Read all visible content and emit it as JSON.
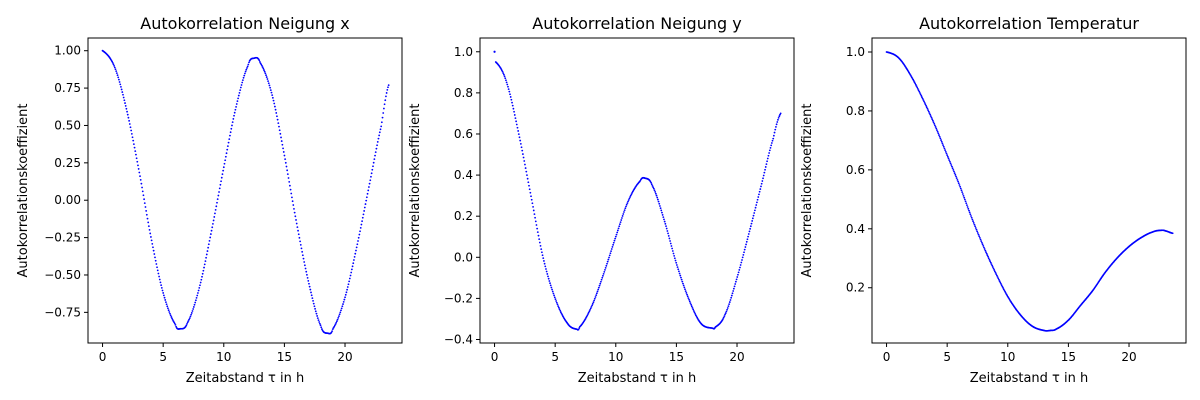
{
  "chart_data": [
    {
      "type": "scatter",
      "title": "Autokorrelation Neigung x",
      "xlabel": "Zeitabstand τ in h",
      "ylabel": "Autokorrelationskoeffizient",
      "xlim": [
        -1.2,
        24.7
      ],
      "ylim": [
        -0.955,
        1.085
      ],
      "xticks": [
        0,
        5,
        10,
        15,
        20
      ],
      "xtick_labels": [
        "0",
        "5",
        "10",
        "15",
        "20"
      ],
      "yticks": [
        -0.75,
        -0.5,
        -0.25,
        0.0,
        0.25,
        0.5,
        0.75,
        1.0
      ],
      "ytick_labels": [
        "−0.75",
        "−0.50",
        "−0.25",
        "0.00",
        "0.25",
        "0.50",
        "0.75",
        "1.00"
      ],
      "color": "#0000ff",
      "grid": false,
      "series": [
        {
          "x": [
            0.0,
            1,
            2,
            3,
            4,
            5,
            6,
            6.4,
            7,
            8,
            9,
            10,
            11,
            12,
            12.5,
            13,
            14,
            15,
            16,
            17,
            18,
            18.6,
            19,
            20,
            21,
            22,
            23,
            23.6
          ],
          "y": [
            1.0,
            0.89,
            0.6,
            0.2,
            -0.25,
            -0.62,
            -0.83,
            -0.86,
            -0.82,
            -0.58,
            -0.2,
            0.22,
            0.62,
            0.9,
            0.95,
            0.92,
            0.7,
            0.3,
            -0.15,
            -0.55,
            -0.84,
            -0.89,
            -0.86,
            -0.65,
            -0.3,
            0.1,
            0.5,
            0.77
          ]
        }
      ]
    },
    {
      "type": "scatter",
      "title": "Autokorrelation Neigung y",
      "xlabel": "Zeitabstand τ in h",
      "ylabel": "Autokorrelationskoeffizient",
      "xlim": [
        -1.2,
        24.7
      ],
      "ylim": [
        -0.417,
        1.067
      ],
      "xticks": [
        0,
        5,
        10,
        15,
        20
      ],
      "xtick_labels": [
        "0",
        "5",
        "10",
        "15",
        "20"
      ],
      "yticks": [
        -0.4,
        -0.2,
        0.0,
        0.2,
        0.4,
        0.6,
        0.8,
        1.0
      ],
      "ytick_labels": [
        "−0.4",
        "−0.2",
        "0.0",
        "0.2",
        "0.4",
        "0.6",
        "0.8",
        "1.0"
      ],
      "color": "#0000ff",
      "grid": false,
      "series": [
        {
          "x": [
            0.0,
            0.1,
            1,
            2,
            3,
            4,
            5,
            6,
            6.8,
            7,
            8,
            9,
            10,
            11,
            12,
            12.4,
            13,
            14,
            15,
            16,
            17,
            18,
            18.2,
            19,
            20,
            21,
            22,
            23,
            23.6
          ],
          "y": [
            1.0,
            0.95,
            0.85,
            0.6,
            0.3,
            0.0,
            -0.2,
            -0.32,
            -0.35,
            -0.34,
            -0.24,
            -0.08,
            0.1,
            0.27,
            0.37,
            0.385,
            0.35,
            0.18,
            -0.03,
            -0.2,
            -0.32,
            -0.345,
            -0.34,
            -0.28,
            -0.1,
            0.12,
            0.35,
            0.58,
            0.7
          ]
        }
      ]
    },
    {
      "type": "scatter",
      "title": "Autokorrelation Temperatur",
      "xlabel": "Zeitabstand τ in h",
      "ylabel": "Autokorrelationskoeffizient",
      "xlim": [
        -1.2,
        24.7
      ],
      "ylim": [
        0.0125,
        1.0475
      ],
      "xticks": [
        0,
        5,
        10,
        15,
        20
      ],
      "xtick_labels": [
        "0",
        "5",
        "10",
        "15",
        "20"
      ],
      "yticks": [
        0.2,
        0.4,
        0.6,
        0.8,
        1.0
      ],
      "ytick_labels": [
        "0.2",
        "0.4",
        "0.6",
        "0.8",
        "1.0"
      ],
      "color": "#0000ff",
      "grid": false,
      "series": [
        {
          "x": [
            0.0,
            1,
            2,
            3,
            4,
            5,
            6,
            7,
            8,
            9,
            10,
            11,
            12,
            13,
            13.5,
            14,
            15,
            16,
            17,
            18,
            19,
            20,
            21,
            22,
            22.7,
            23,
            23.6
          ],
          "y": [
            1.0,
            0.98,
            0.92,
            0.84,
            0.75,
            0.65,
            0.55,
            0.44,
            0.34,
            0.25,
            0.17,
            0.11,
            0.07,
            0.055,
            0.055,
            0.06,
            0.09,
            0.14,
            0.19,
            0.25,
            0.3,
            0.34,
            0.37,
            0.39,
            0.395,
            0.393,
            0.385
          ]
        }
      ]
    }
  ]
}
